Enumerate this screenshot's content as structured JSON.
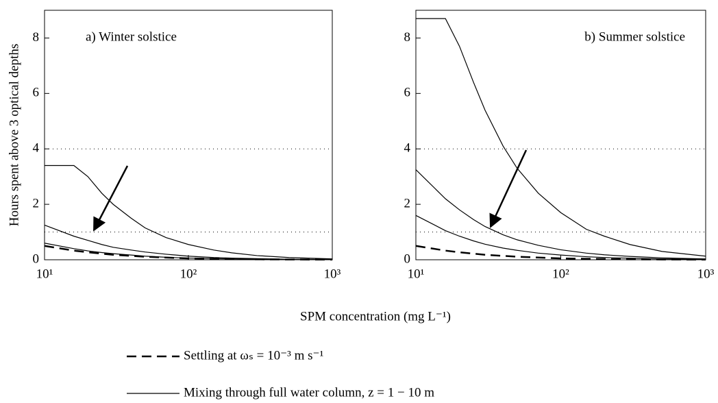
{
  "ylabel": "Hours spent above 3 optical depths",
  "xlabel": "SPM concentration (mg L⁻¹)",
  "legend": [
    {
      "label": "Settling at ωₛ = 10⁻³ m s⁻¹",
      "style": "dashed"
    },
    {
      "label": "Mixing through full water column, z = 1 − 10 m",
      "style": "solid"
    }
  ],
  "chart_data": [
    {
      "type": "line",
      "title": "a) Winter solstice",
      "xscale": "log",
      "x": [
        10,
        16,
        20,
        25,
        30,
        40,
        50,
        70,
        100,
        150,
        200,
        300,
        500,
        1000
      ],
      "xlim": [
        10,
        1000
      ],
      "xticks": [
        {
          "value": 10,
          "label": "10¹"
        },
        {
          "value": 100,
          "label": "10²"
        },
        {
          "value": 1000,
          "label": "10³"
        }
      ],
      "ylim": [
        0,
        9
      ],
      "yticks": [
        0,
        2,
        4,
        6,
        8
      ],
      "hlines": [
        4,
        1
      ],
      "series": [
        {
          "color": "#000000",
          "style": "solid",
          "values": [
            3.4,
            3.4,
            3.0,
            2.4,
            2.0,
            1.5,
            1.15,
            0.8,
            0.55,
            0.35,
            0.25,
            0.15,
            0.08,
            0.03
          ]
        },
        {
          "color": "#000000",
          "style": "solid",
          "values": [
            1.25,
            0.85,
            0.7,
            0.55,
            0.45,
            0.35,
            0.28,
            0.2,
            0.13,
            0.08,
            0.06,
            0.04,
            0.02,
            0.01
          ]
        },
        {
          "color": "#000000",
          "style": "solid",
          "values": [
            0.6,
            0.4,
            0.32,
            0.26,
            0.22,
            0.17,
            0.13,
            0.09,
            0.06,
            0.04,
            0.03,
            0.02,
            0.01,
            0.005
          ]
        },
        {
          "color": "#000000",
          "style": "dashed",
          "values": [
            0.5,
            0.33,
            0.27,
            0.22,
            0.18,
            0.14,
            0.11,
            0.08,
            0.05,
            0.035,
            0.025,
            0.015,
            0.01,
            0.005
          ]
        }
      ]
    },
    {
      "type": "line",
      "title": "b) Summer solstice",
      "xscale": "log",
      "x": [
        10,
        16,
        20,
        25,
        30,
        40,
        50,
        70,
        100,
        150,
        200,
        300,
        500,
        1000
      ],
      "xlim": [
        10,
        1000
      ],
      "xticks": [
        {
          "value": 10,
          "label": "10¹"
        },
        {
          "value": 100,
          "label": "10²"
        },
        {
          "value": 1000,
          "label": "10³"
        }
      ],
      "ylim": [
        0,
        9
      ],
      "yticks": [
        0,
        2,
        4,
        6,
        8
      ],
      "hlines": [
        4,
        1
      ],
      "series": [
        {
          "color": "#000000",
          "style": "solid",
          "values": [
            8.7,
            8.7,
            7.7,
            6.4,
            5.4,
            4.1,
            3.3,
            2.4,
            1.7,
            1.1,
            0.85,
            0.55,
            0.3,
            0.13
          ]
        },
        {
          "color": "#000000",
          "style": "solid",
          "values": [
            3.25,
            2.2,
            1.8,
            1.45,
            1.2,
            0.9,
            0.72,
            0.52,
            0.36,
            0.24,
            0.18,
            0.12,
            0.07,
            0.03
          ]
        },
        {
          "color": "#000000",
          "style": "solid",
          "values": [
            1.6,
            1.05,
            0.85,
            0.68,
            0.56,
            0.42,
            0.34,
            0.24,
            0.17,
            0.11,
            0.08,
            0.055,
            0.03,
            0.015
          ]
        },
        {
          "color": "#000000",
          "style": "dashed",
          "values": [
            0.5,
            0.33,
            0.27,
            0.22,
            0.18,
            0.14,
            0.11,
            0.08,
            0.05,
            0.035,
            0.025,
            0.015,
            0.01,
            0.005
          ]
        }
      ]
    }
  ]
}
